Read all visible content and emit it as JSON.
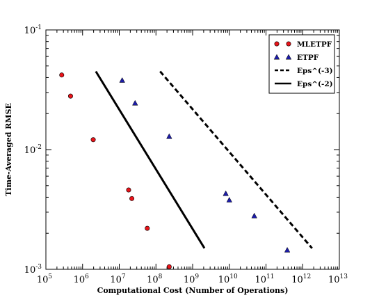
{
  "chart_data": {
    "type": "scatter",
    "xlabel": "Computational Cost (Number of Operations)",
    "ylabel": "Time-Averaged RMSE",
    "xscale": "log",
    "yscale": "log",
    "xlim": [
      100000,
      10000000000000
    ],
    "ylim": [
      0.001,
      0.1
    ],
    "grid": false,
    "legend_position": "top-right",
    "x_ticks": [
      {
        "value": 100000,
        "base": "10",
        "exp": "5"
      },
      {
        "value": 1000000,
        "base": "10",
        "exp": "6"
      },
      {
        "value": 10000000,
        "base": "10",
        "exp": "7"
      },
      {
        "value": 100000000,
        "base": "10",
        "exp": "8"
      },
      {
        "value": 1000000000,
        "base": "10",
        "exp": "9"
      },
      {
        "value": 10000000000,
        "base": "10",
        "exp": "10"
      },
      {
        "value": 100000000000,
        "base": "10",
        "exp": "11"
      },
      {
        "value": 1000000000000,
        "base": "10",
        "exp": "12"
      },
      {
        "value": 10000000000000,
        "base": "10",
        "exp": "13"
      }
    ],
    "y_ticks": [
      {
        "value": 0.001,
        "base": "10",
        "exp": "-3"
      },
      {
        "value": 0.01,
        "base": "10",
        "exp": "-2"
      },
      {
        "value": 0.1,
        "base": "10",
        "exp": "-1"
      }
    ],
    "series": [
      {
        "name": "MLETPF",
        "kind": "markers",
        "marker": "circle",
        "color": "#e8141a",
        "points": [
          {
            "x": 270000,
            "y": 0.042
          },
          {
            "x": 470000,
            "y": 0.028
          },
          {
            "x": 1950000,
            "y": 0.0121
          },
          {
            "x": 18000000,
            "y": 0.0046
          },
          {
            "x": 22000000,
            "y": 0.0039
          },
          {
            "x": 58000000,
            "y": 0.0022
          },
          {
            "x": 230000000,
            "y": 0.00105
          }
        ]
      },
      {
        "name": "ETPF",
        "kind": "markers",
        "marker": "triangle",
        "color": "#1c1ca6",
        "points": [
          {
            "x": 12000000,
            "y": 0.038
          },
          {
            "x": 27000000,
            "y": 0.0245
          },
          {
            "x": 230000000,
            "y": 0.0129
          },
          {
            "x": 8000000000,
            "y": 0.0043
          },
          {
            "x": 10000000000,
            "y": 0.0038
          },
          {
            "x": 48000000000,
            "y": 0.0028
          },
          {
            "x": 380000000000,
            "y": 0.00145
          }
        ]
      },
      {
        "name": "Eps^(-3)",
        "kind": "line",
        "dash": "dashed",
        "color": "#000000",
        "points": [
          {
            "x": 130000000,
            "y": 0.045
          },
          {
            "x": 1800000000000,
            "y": 0.0015
          }
        ]
      },
      {
        "name": "Eps^(-2)",
        "kind": "line",
        "dash": "solid",
        "color": "#000000",
        "points": [
          {
            "x": 2300000,
            "y": 0.045
          },
          {
            "x": 2100000000,
            "y": 0.0015
          }
        ]
      }
    ]
  }
}
